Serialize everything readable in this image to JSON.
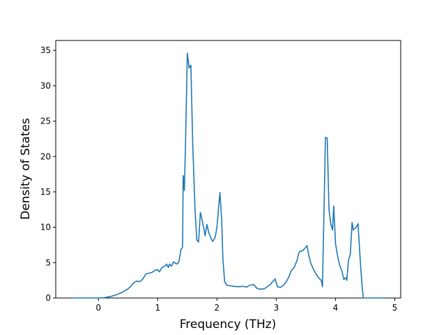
{
  "chart_data": {
    "type": "line",
    "xlabel": "Frequency (THz)",
    "ylabel": "Density of States",
    "x": [
      -0.45,
      0,
      0.1,
      0.2,
      0.3,
      0.4,
      0.5,
      0.55,
      0.6,
      0.65,
      0.7,
      0.75,
      0.8,
      0.85,
      0.9,
      0.95,
      1.0,
      1.03,
      1.07,
      1.12,
      1.15,
      1.18,
      1.2,
      1.23,
      1.27,
      1.3,
      1.33,
      1.36,
      1.39,
      1.42,
      1.43,
      1.45,
      1.47,
      1.5,
      1.53,
      1.56,
      1.59,
      1.63,
      1.66,
      1.69,
      1.72,
      1.75,
      1.78,
      1.8,
      1.83,
      1.86,
      1.9,
      1.93,
      1.97,
      2.0,
      2.03,
      2.05,
      2.08,
      2.1,
      2.13,
      2.17,
      2.25,
      2.35,
      2.45,
      2.5,
      2.55,
      2.62,
      2.67,
      2.72,
      2.8,
      2.85,
      2.9,
      2.95,
      2.98,
      3.02,
      3.07,
      3.12,
      3.17,
      3.22,
      3.25,
      3.3,
      3.35,
      3.38,
      3.4,
      3.45,
      3.5,
      3.52,
      3.55,
      3.58,
      3.62,
      3.67,
      3.72,
      3.76,
      3.78,
      3.8,
      3.83,
      3.86,
      3.89,
      3.92,
      3.95,
      3.97,
      4.0,
      4.03,
      4.07,
      4.1,
      4.12,
      4.14,
      4.17,
      4.19,
      4.22,
      4.25,
      4.28,
      4.3,
      4.35,
      4.38,
      4.42,
      4.45,
      4.47,
      4.85
    ],
    "series": [
      {
        "name": "DOS",
        "color": "#1f77b4",
        "values": [
          0,
          0,
          0.05,
          0.2,
          0.45,
          0.8,
          1.3,
          1.7,
          2.2,
          2.4,
          2.3,
          2.7,
          3.4,
          3.5,
          3.6,
          3.9,
          4.0,
          3.7,
          4.3,
          4.5,
          4.8,
          4.3,
          4.8,
          4.5,
          5.1,
          4.9,
          4.8,
          5.2,
          6.8,
          7.2,
          17.3,
          15.2,
          22,
          34.6,
          32.5,
          32.9,
          22,
          12.5,
          8.2,
          7.9,
          12.1,
          11,
          9.8,
          8.8,
          10.4,
          9.3,
          8.4,
          8.0,
          8.6,
          10,
          13,
          14.9,
          11,
          5.5,
          2.3,
          1.8,
          1.7,
          1.6,
          1.65,
          1.55,
          1.8,
          1.9,
          1.4,
          1.25,
          1.3,
          1.6,
          1.9,
          2.4,
          2.7,
          1.6,
          1.5,
          1.8,
          2.3,
          3.1,
          3.8,
          4.3,
          5.3,
          6.3,
          6.6,
          6.7,
          7.2,
          7.4,
          6,
          5,
          4.2,
          3.4,
          2.8,
          2.5,
          1.6,
          10,
          22.7,
          22.6,
          12.5,
          10.5,
          9.6,
          13,
          7.7,
          6.2,
          4.6,
          4,
          3.4,
          2.6,
          2.9,
          2.5,
          5.4,
          6.2,
          10.7,
          9.6,
          10.0,
          10.5,
          5,
          1.5,
          0,
          0
        ]
      }
    ],
    "xlim": [
      -0.72,
      5.1
    ],
    "ylim": [
      0,
      36.4
    ],
    "xticks": [
      0,
      1,
      2,
      3,
      4,
      5
    ],
    "yticks": [
      0,
      5,
      10,
      15,
      20,
      25,
      30,
      35
    ]
  }
}
